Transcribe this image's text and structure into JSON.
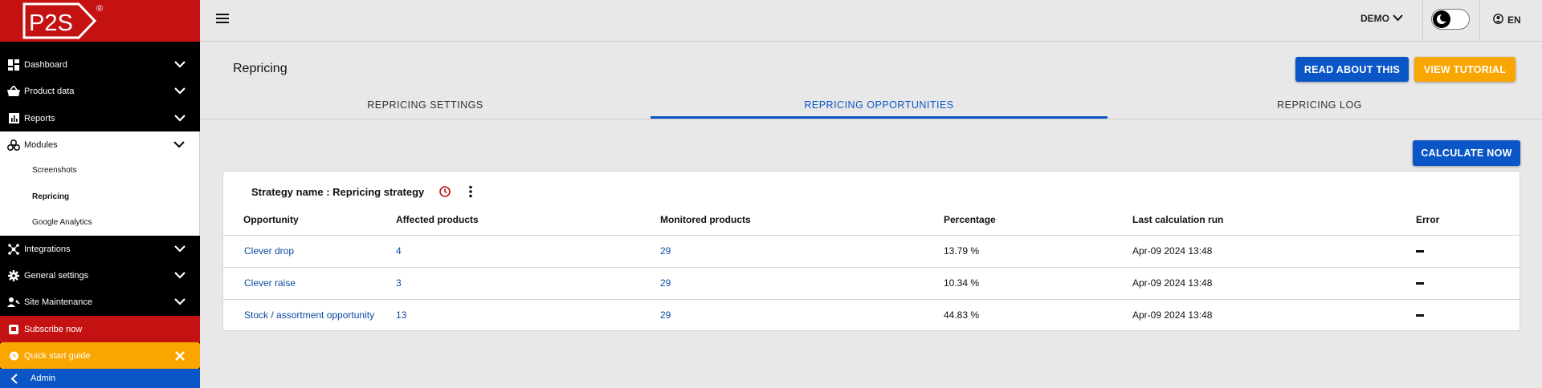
{
  "app": {
    "logo_text": "P2S",
    "registered_mark": "®"
  },
  "sidebar": {
    "items": [
      {
        "label": "Dashboard",
        "icon": "dashboard-icon"
      },
      {
        "label": "Product data",
        "icon": "basket-icon"
      },
      {
        "label": "Reports",
        "icon": "reports-icon"
      },
      {
        "label": "Modules",
        "icon": "modules-icon"
      },
      {
        "label": "Integrations",
        "icon": "integrations-icon"
      },
      {
        "label": "General settings",
        "icon": "gear-icon"
      },
      {
        "label": "Site Maintenance",
        "icon": "maintenance-icon"
      }
    ],
    "sub_items": [
      "Screenshots",
      "Repricing",
      "Google Analytics"
    ],
    "subscribe_label": "Subscribe now",
    "quick_start_label": "Quick start guide",
    "admin_label": "Admin"
  },
  "topbar": {
    "account_label": "DEMO",
    "language_label": "EN"
  },
  "header": {
    "title": "Repricing",
    "read_about_label": "READ ABOUT THIS",
    "tutorial_label": "VIEW TUTORIAL"
  },
  "tabs": [
    {
      "label": "REPRICING SETTINGS",
      "active": false
    },
    {
      "label": "REPRICING OPPORTUNITIES",
      "active": true
    },
    {
      "label": "REPRICING LOG",
      "active": false
    }
  ],
  "calculate_label": "CALCULATE NOW",
  "strategy": {
    "title": "Strategy name : Repricing strategy"
  },
  "table": {
    "columns": [
      "Opportunity",
      "Affected products",
      "Monitored products",
      "Percentage",
      "Last calculation run",
      "Error"
    ],
    "rows": [
      {
        "opportunity": "Clever drop",
        "affected": "4",
        "monitored": "29",
        "percentage": "13.79 %",
        "last_run": "Apr-09 2024 13:48"
      },
      {
        "opportunity": "Clever raise",
        "affected": "3",
        "monitored": "29",
        "percentage": "10.34 %",
        "last_run": "Apr-09 2024 13:48"
      },
      {
        "opportunity": "Stock / assortment opportunity",
        "affected": "13",
        "monitored": "29",
        "percentage": "44.83 %",
        "last_run": "Apr-09 2024 13:48"
      }
    ]
  },
  "colors": {
    "brand_red": "#c41112",
    "primary_blue": "#0a56c7",
    "accent_yellow": "#f9a600",
    "link_blue": "#0a4a9e"
  }
}
